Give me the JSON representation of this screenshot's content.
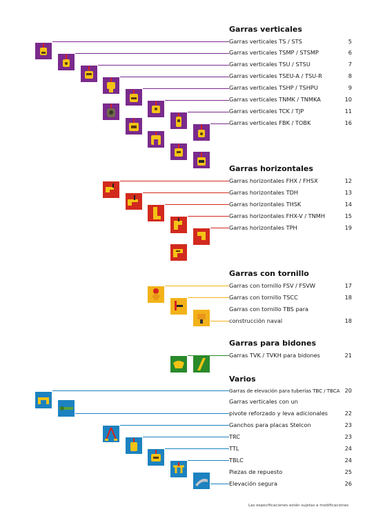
{
  "colors": {
    "vertical": "#7a2a8c",
    "horizontal": "#d22a1e",
    "tornillo": "#f2b21a",
    "bidones": "#2a8a2a",
    "varios": "#1c82c0"
  },
  "sections": [
    {
      "id": "vertical",
      "title": "Garras verticales",
      "items": [
        {
          "label": "Garras verticales TS / STS",
          "page": "5"
        },
        {
          "label": "Garras verticales TSMP / STSMP",
          "page": "6"
        },
        {
          "label": "Garras verticales TSU / STSU",
          "page": "7"
        },
        {
          "label": "Garras verticales TSEU-A / TSU-R",
          "page": "8"
        },
        {
          "label": "Garras verticales TSHP / TSHPU",
          "page": "9"
        },
        {
          "label": "Garras verticales TNMK / TNMKA",
          "page": "10"
        },
        {
          "label": "Garras verticales TCK / TJP",
          "page": "11"
        },
        {
          "label": "Garras verticales FBK / TOBK",
          "page": "16"
        }
      ]
    },
    {
      "id": "horizontal",
      "title": "Garras horizontales",
      "items": [
        {
          "label": "Garras horizontales FHX / FHSX",
          "page": "12"
        },
        {
          "label": "Garras horizontales TDH",
          "page": "13"
        },
        {
          "label": "Garras horizontales THSK",
          "page": "14"
        },
        {
          "label": "Garras horizontales FHX-V / TNMH",
          "page": "15"
        },
        {
          "label": "Garras horizontales TPH",
          "page": "19"
        }
      ]
    },
    {
      "id": "tornillo",
      "title": "Garras con tornillo",
      "items": [
        {
          "label": "Garras con tornillo FSV / FSVW",
          "page": "17"
        },
        {
          "label": "Garras con tornillo TSCC",
          "page": "18"
        },
        {
          "label": "Garras con tornillo TBS para",
          "page": ""
        },
        {
          "label": "construcción naval",
          "page": "18"
        }
      ]
    },
    {
      "id": "bidones",
      "title": "Garras para bidones",
      "items": [
        {
          "label": "Garras TVK / TVKH para bidones",
          "page": "21"
        }
      ]
    },
    {
      "id": "varios",
      "title": "Varios",
      "items": [
        {
          "label": "Garras de elevación para tuberías TBC / TBCA",
          "page": "20"
        },
        {
          "label": "Garras verticales con un",
          "page": ""
        },
        {
          "label": "pivote reforzado y leva adicionales",
          "page": "22"
        },
        {
          "label": "Ganchos para placas Stelcon",
          "page": "23"
        },
        {
          "label": "TRC",
          "page": "23"
        },
        {
          "label": "TTL",
          "page": "24"
        },
        {
          "label": "TBLC",
          "page": "24"
        },
        {
          "label": "Piezas de repuesto",
          "page": "25"
        },
        {
          "label": "Elevación segura",
          "page": "26"
        }
      ]
    }
  ],
  "footer": "Las especificaciones están sujetas a modificaciones"
}
